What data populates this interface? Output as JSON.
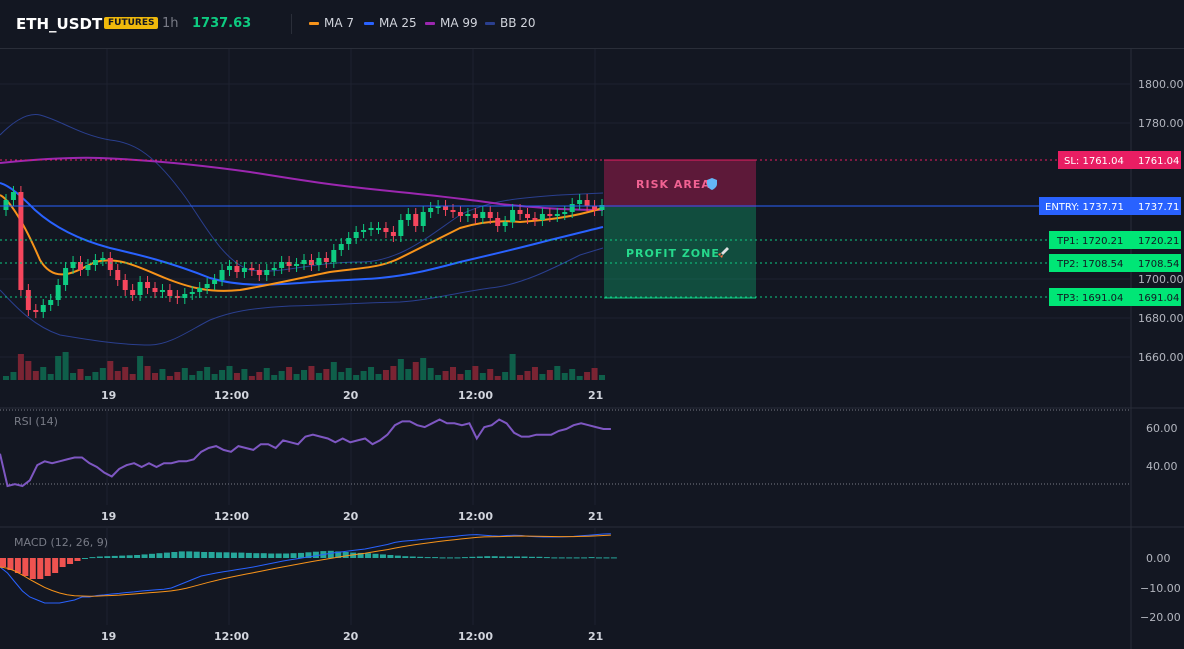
{
  "header": {
    "symbol": "ETH_USDT",
    "badge": "FUTURES",
    "timeframe": "1h",
    "last_price": "1737.63"
  },
  "indicators": [
    {
      "label": "MA 7",
      "color": "#f7931a"
    },
    {
      "label": "MA 25",
      "color": "#2962ff"
    },
    {
      "label": "MA 99",
      "color": "#9c27b0"
    },
    {
      "label": "BB 20",
      "color": "#2a3f8f"
    }
  ],
  "price_axis": {
    "ticks": [
      "1800.00",
      "1780.00",
      "1700.00",
      "1680.00",
      "1660.00"
    ]
  },
  "time_axis": {
    "labels": [
      "19",
      "12:00",
      "20",
      "12:00",
      "21"
    ]
  },
  "zones": {
    "risk_label": "RISK AREA",
    "risk_icon": "shield-icon",
    "profit_label": "PROFIT ZONE",
    "profit_icon": "rocket-icon"
  },
  "levels": {
    "sl": "SL: 1761.04",
    "sl_axis": "1761.04",
    "entry": "ENTRY: 1737.71",
    "entry_axis": "1737.71",
    "tp1": "TP1: 1720.21",
    "tp1_axis": "1720.21",
    "tp2": "TP2: 1708.54",
    "tp2_axis": "1708.54",
    "tp3": "TP3: 1691.04",
    "tp3_axis": "1691.04"
  },
  "rsi": {
    "title": "RSI (14)",
    "ticks": [
      "60.00",
      "40.00"
    ],
    "values": [
      47,
      30,
      31,
      30,
      33,
      41,
      43,
      42,
      43,
      44,
      45,
      45,
      42,
      40,
      37,
      35,
      39,
      41,
      42,
      40,
      42,
      40,
      42,
      42,
      43,
      43,
      44,
      48,
      50,
      51,
      49,
      48,
      51,
      50,
      49,
      52,
      52,
      50,
      54,
      53,
      52,
      56,
      57,
      56,
      55,
      53,
      55,
      53,
      54,
      55,
      52,
      54,
      57,
      62,
      64,
      64,
      62,
      61,
      63,
      65,
      63,
      63,
      62,
      63,
      55,
      61,
      62,
      65,
      63,
      58,
      56,
      56,
      57,
      57,
      57,
      59,
      60,
      62,
      63,
      62,
      61,
      60,
      60
    ]
  },
  "macd": {
    "title": "MACD (12, 26, 9)",
    "ticks": [
      "0.00",
      "−10.00",
      "−20.00"
    ],
    "histogram": [
      -3,
      -4,
      -5,
      -6,
      -7,
      -7,
      -6,
      -5,
      -3,
      -2,
      -1,
      0,
      0.3,
      0.5,
      0.6,
      0.7,
      0.8,
      0.9,
      1.0,
      1.2,
      1.4,
      1.6,
      1.8,
      2.0,
      2.2,
      2.2,
      2.1,
      2.0,
      2.0,
      1.9,
      1.9,
      1.8,
      1.8,
      1.7,
      1.6,
      1.6,
      1.5,
      1.5,
      1.5,
      1.6,
      1.7,
      1.9,
      2.1,
      2.3,
      2.4,
      2.2,
      2.0,
      1.8,
      1.7,
      1.6,
      1.4,
      1.2,
      1.0,
      0.8,
      0.6,
      0.5,
      0.4,
      0.3,
      0.3,
      0.2,
      0.2,
      0.2,
      0.3,
      0.4,
      0.5,
      0.6,
      0.6,
      0.5,
      0.5,
      0.5,
      0.5,
      0.4,
      0.4,
      0.3,
      0.2,
      0.2,
      0.2,
      0.2,
      0.2,
      0.3,
      0.2,
      0.2,
      0.2
    ],
    "macd_line": [
      -3,
      -5,
      -8,
      -11,
      -13,
      -14,
      -15,
      -15,
      -15,
      -14.5,
      -14,
      -13,
      -13,
      -12.5,
      -12.3,
      -12,
      -11.8,
      -11.5,
      -11.3,
      -11,
      -10.8,
      -10.6,
      -10.4,
      -10,
      -9,
      -8,
      -7,
      -6,
      -5.5,
      -5,
      -4.6,
      -4.2,
      -3.8,
      -3.4,
      -3,
      -2.5,
      -2,
      -1.5,
      -1,
      -0.6,
      -0.2,
      0.2,
      0.6,
      1,
      1.4,
      1.8,
      2.1,
      2.4,
      2.7,
      3,
      3.5,
      4,
      4.5,
      5.2,
      5.6,
      5.8,
      6,
      6.3,
      6.5,
      6.8,
      7,
      7.2,
      7.5,
      7.7,
      7.8,
      7.6,
      7.4,
      7.3,
      7.5,
      7.6,
      7.5,
      7.2,
      7.1,
      7,
      7,
      7,
      7.1,
      7.2,
      7.4,
      7.6,
      7.8,
      8,
      8.1
    ]
  }
}
